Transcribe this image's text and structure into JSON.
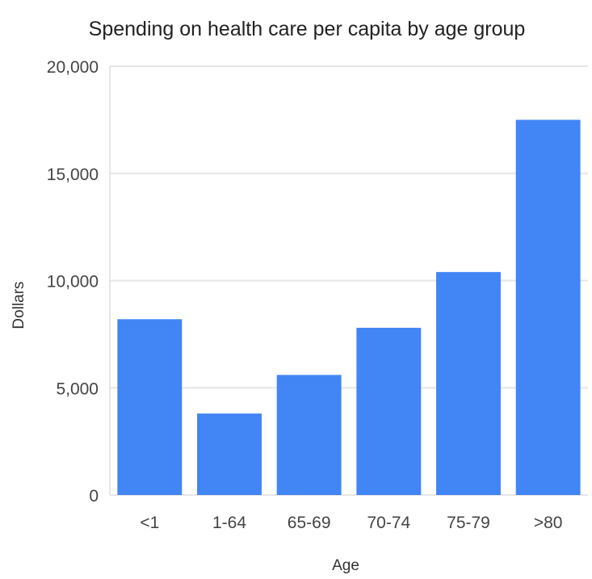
{
  "chart_data": {
    "type": "bar",
    "title": "Spending on health care per capita by age group",
    "xlabel": "Age",
    "ylabel": "Dollars",
    "categories": [
      "<1",
      "1-64",
      "65-69",
      "70-74",
      "75-79",
      ">80"
    ],
    "values": [
      8200,
      3800,
      5600,
      7800,
      10400,
      17500
    ],
    "ylim": [
      0,
      20000
    ],
    "yticks": [
      0,
      5000,
      10000,
      15000,
      20000
    ],
    "ytick_labels": [
      "0",
      "5,000",
      "10,000",
      "15,000",
      "20,000"
    ],
    "grid": true,
    "legend": "none",
    "bar_color": "#4285F4",
    "grid_color": "#e6e6e6"
  }
}
